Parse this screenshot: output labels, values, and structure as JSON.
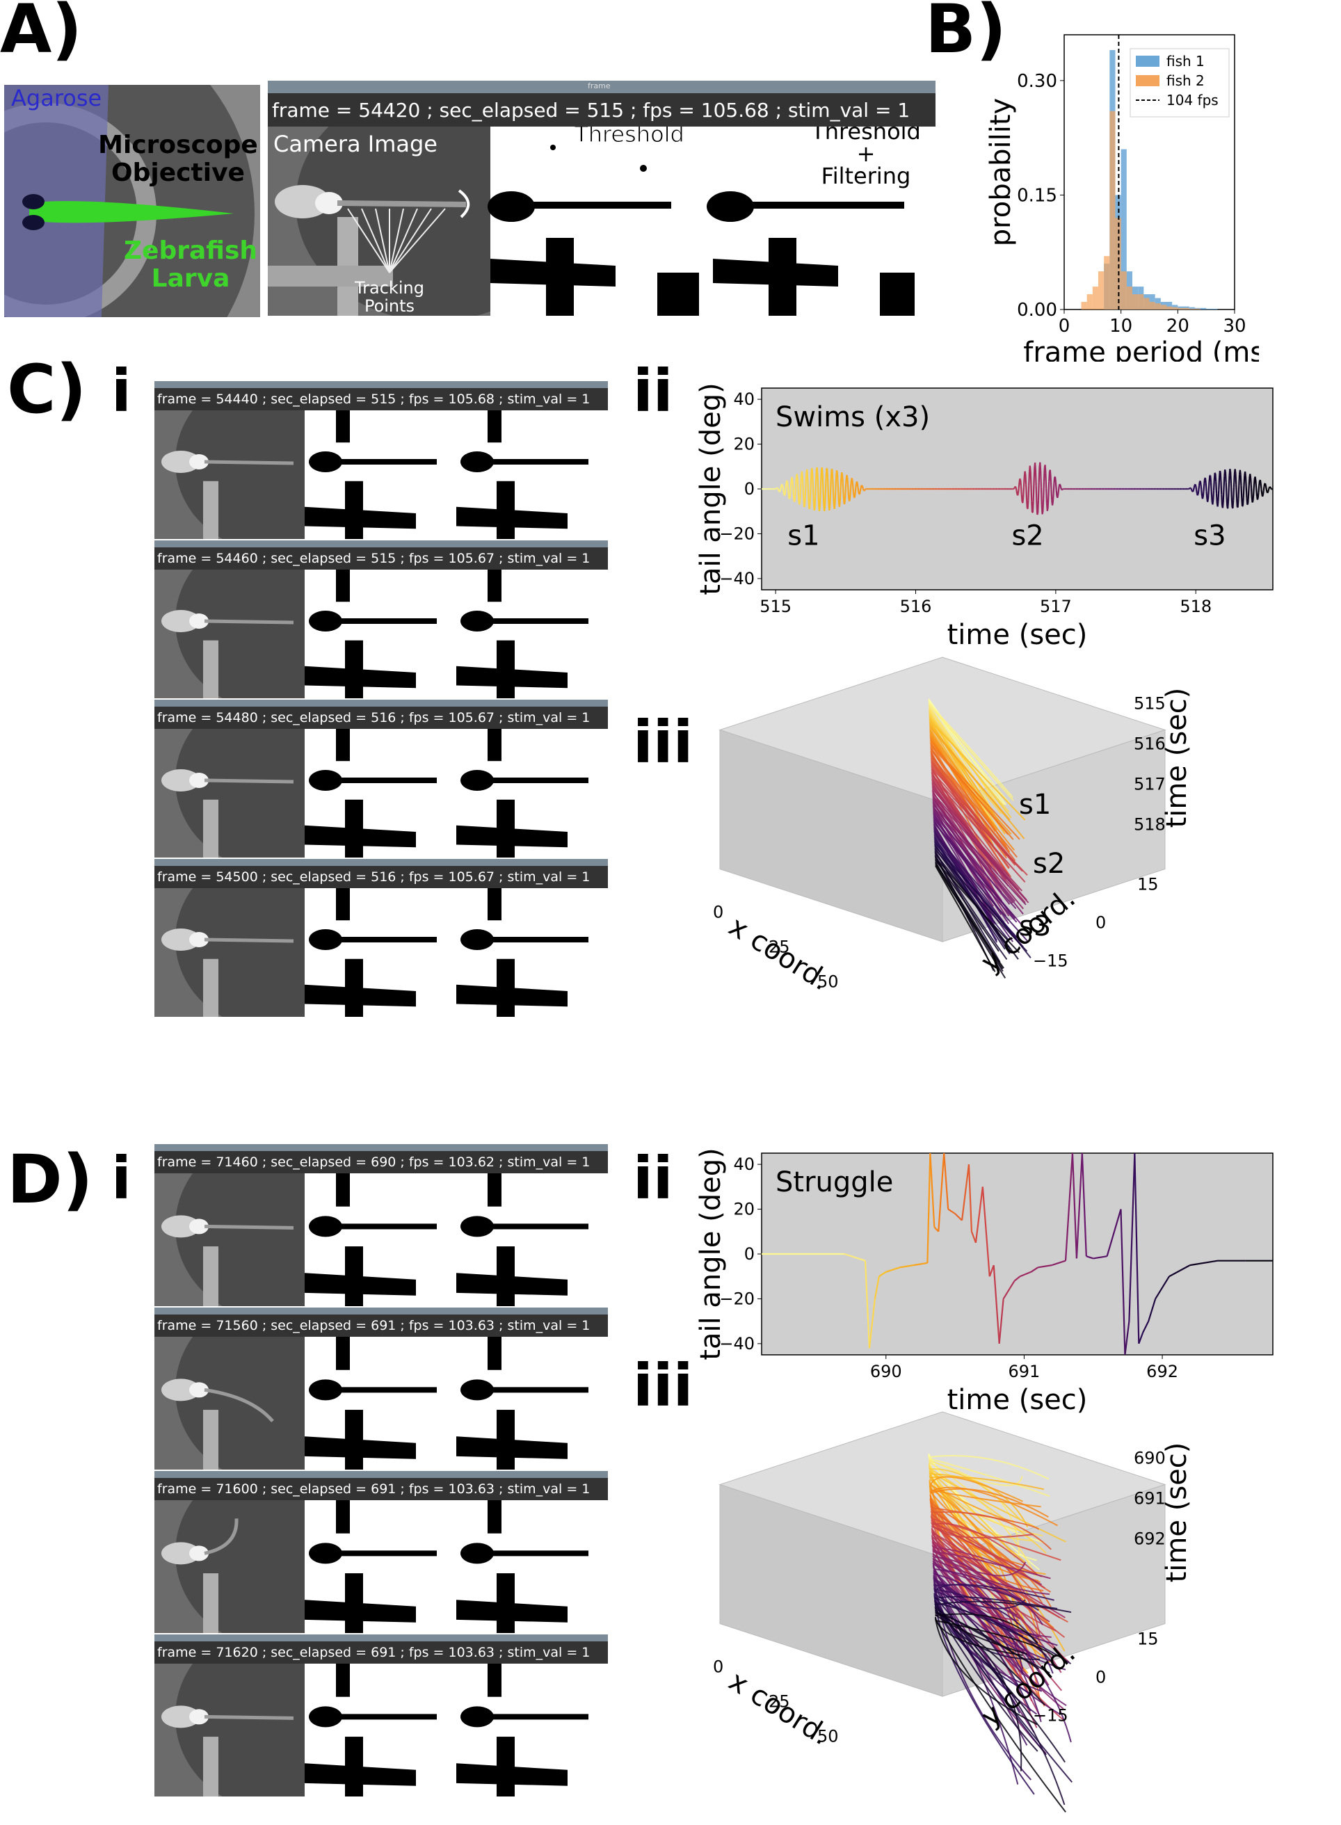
{
  "panels": {
    "A": "A)",
    "B": "B)",
    "C": "C)",
    "D": "D)",
    "sub_i": "i",
    "sub_ii": "ii",
    "sub_iii": "iii"
  },
  "panelA": {
    "schematic": {
      "agarose": "Agarose",
      "objective_line1": "Microscope",
      "objective_line2": "Objective",
      "larva_line1": "Zebrafish",
      "larva_line2": "Larva"
    },
    "window": {
      "title": "frame",
      "status": "frame = 54420 ; sec_elapsed = 515 ; fps = 105.68 ; stim_val = 1",
      "camera_label": "Camera Image",
      "threshold_label": "Threshold",
      "filter_line1": "Threshold",
      "filter_line2": "+",
      "filter_line3": "Filtering",
      "tracking_line1": "Tracking",
      "tracking_line2": "Points"
    }
  },
  "panelC": {
    "frames": [
      "frame = 54440 ; sec_elapsed = 515 ; fps = 105.68 ; stim_val = 1",
      "frame = 54460 ; sec_elapsed = 515 ; fps = 105.67 ; stim_val = 1",
      "frame = 54480 ; sec_elapsed = 516 ; fps = 105.67 ; stim_val = 1",
      "frame = 54500 ; sec_elapsed = 516 ; fps = 105.67 ; stim_val = 1"
    ],
    "swim_labels": [
      "s1",
      "s2",
      "s3"
    ],
    "iii_labels": {
      "xlabel": "x coord.",
      "ylabel": "y coord.",
      "zlabel": "time (sec)",
      "x_ticks": [
        "0",
        "25",
        "50"
      ],
      "y_ticks": [
        "15",
        "0",
        "−15"
      ],
      "z_ticks": [
        "515",
        "516",
        "517",
        "518"
      ]
    }
  },
  "panelD": {
    "frames": [
      "frame = 71460 ; sec_elapsed = 690 ; fps = 103.62 ; stim_val = 1",
      "frame = 71560 ; sec_elapsed = 691 ; fps = 103.63 ; stim_val = 1",
      "frame = 71600 ; sec_elapsed = 691 ; fps = 103.63 ; stim_val = 1",
      "frame = 71620 ; sec_elapsed = 691 ; fps = 103.63 ; stim_val = 1"
    ],
    "iii_labels": {
      "xlabel": "x coord.",
      "ylabel": "y coord.",
      "zlabel": "time (sec)",
      "x_ticks": [
        "0",
        "25",
        "50"
      ],
      "y_ticks": [
        "15",
        "0",
        "−15"
      ],
      "z_ticks": [
        "690",
        "691",
        "692"
      ]
    }
  },
  "chart_data": [
    {
      "id": "B",
      "type": "bar",
      "xlabel": "frame period (ms)",
      "ylabel": "probability",
      "xlim": [
        0,
        30
      ],
      "ylim": [
        0,
        0.36
      ],
      "x_ticks": [
        "0",
        "10",
        "20",
        "30"
      ],
      "y_ticks": [
        "0.00",
        "0.15",
        "0.30"
      ],
      "bin_edges": [
        3,
        4,
        5,
        6,
        7,
        8,
        9,
        10,
        11,
        12,
        13,
        14,
        15,
        16,
        17,
        18,
        19,
        20,
        21,
        22,
        23,
        24,
        25,
        26,
        27
      ],
      "series": [
        {
          "name": "fish 1",
          "color": "#6aa6d6",
          "values": [
            0.0,
            0.0,
            0.0,
            0.0,
            0.06,
            0.34,
            0.15,
            0.21,
            0.05,
            0.03,
            0.03,
            0.02,
            0.02,
            0.015,
            0.01,
            0.01,
            0.006,
            0.004,
            0.004,
            0.003,
            0.002,
            0.002,
            0.001,
            0.001
          ]
        },
        {
          "name": "fish 2",
          "color": "#f5a45c",
          "values": [
            0.01,
            0.02,
            0.03,
            0.05,
            0.07,
            0.26,
            0.12,
            0.05,
            0.03,
            0.02,
            0.02,
            0.015,
            0.01,
            0.008,
            0.006,
            0.004,
            0.003,
            0.002,
            0.002,
            0.001,
            0.001,
            0.0,
            0.0,
            0.0
          ]
        }
      ],
      "vline": {
        "x": 9.6,
        "label": "104 fps"
      },
      "legend": "top-right"
    },
    {
      "id": "C-ii",
      "type": "line",
      "title": "Swims (x3)",
      "xlabel": "time (sec)",
      "ylabel": "tail angle (deg)",
      "xlim": [
        514.9,
        518.55
      ],
      "ylim": [
        -45,
        45
      ],
      "x_ticks": [
        515,
        516,
        517,
        518
      ],
      "y_ticks": [
        -40,
        -20,
        0,
        20,
        40
      ],
      "annotations": [
        {
          "text": "s1",
          "x": 515.2,
          "y": -25
        },
        {
          "text": "s2",
          "x": 516.8,
          "y": -25
        },
        {
          "text": "s3",
          "x": 518.1,
          "y": -25
        }
      ],
      "bouts": [
        {
          "start": 515.0,
          "end": 515.65,
          "amp": 10
        },
        {
          "start": 516.7,
          "end": 517.05,
          "amp": 12
        },
        {
          "start": 517.95,
          "end": 518.55,
          "amp": 9
        }
      ]
    },
    {
      "id": "D-ii",
      "type": "line",
      "title": "Struggle",
      "xlabel": "time (sec)",
      "ylabel": "tail angle (deg)",
      "xlim": [
        689.1,
        692.8
      ],
      "ylim": [
        -45,
        45
      ],
      "x_ticks": [
        690,
        691,
        692
      ],
      "y_ticks": [
        -40,
        -20,
        0,
        20,
        40
      ],
      "x": [
        689.1,
        689.7,
        689.85,
        689.88,
        689.92,
        689.95,
        690.0,
        690.1,
        690.2,
        690.3,
        690.32,
        690.35,
        690.38,
        690.42,
        690.45,
        690.5,
        690.55,
        690.6,
        690.62,
        690.65,
        690.7,
        690.75,
        690.78,
        690.82,
        690.85,
        690.9,
        690.93,
        690.97,
        691.05,
        691.1,
        691.2,
        691.3,
        691.35,
        691.38,
        691.42,
        691.45,
        691.5,
        691.6,
        691.7,
        691.73,
        691.76,
        691.8,
        691.83,
        691.86,
        691.9,
        691.95,
        692.05,
        692.2,
        692.4,
        692.6,
        692.8
      ],
      "y": [
        0,
        0,
        -3,
        -42,
        -20,
        -10,
        -8,
        -6,
        -5,
        -4,
        45,
        12,
        10,
        45,
        20,
        18,
        15,
        40,
        10,
        5,
        30,
        -10,
        -5,
        -40,
        -20,
        -15,
        -12,
        -10,
        -8,
        -6,
        -5,
        -3,
        45,
        -2,
        45,
        -1,
        -2,
        -1,
        20,
        -45,
        -30,
        45,
        -40,
        -35,
        -30,
        -20,
        -10,
        -5,
        -3,
        -3,
        -3
      ]
    }
  ]
}
